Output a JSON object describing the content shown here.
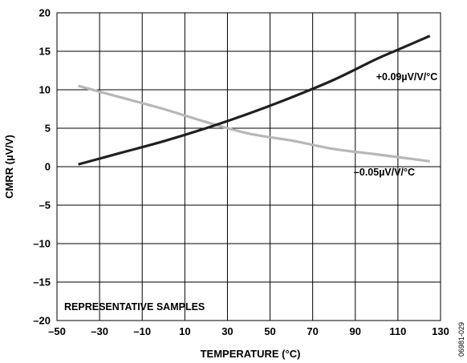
{
  "chart_data": {
    "type": "line",
    "xlabel": "TEMPERATURE (°C)",
    "ylabel": "CMRR (µV/V)",
    "xlim": [
      -50,
      130
    ],
    "ylim": [
      -20,
      20
    ],
    "x_ticks": [
      -50,
      -30,
      -10,
      10,
      30,
      50,
      70,
      90,
      110,
      130
    ],
    "x_tick_labels": [
      "–50",
      "–30",
      "–10",
      "10",
      "30",
      "50",
      "70",
      "90",
      "110",
      "130"
    ],
    "y_ticks": [
      -20,
      -15,
      -10,
      -5,
      0,
      5,
      10,
      15,
      20
    ],
    "y_tick_labels": [
      "–20",
      "–15",
      "–10",
      "–5",
      "0",
      "5",
      "10",
      "15",
      "20"
    ],
    "grid": true,
    "series": [
      {
        "name": "+0.09µV/V/°C",
        "color": "#231f20",
        "x": [
          -40,
          -20,
          0,
          20,
          40,
          60,
          80,
          100,
          110,
          125
        ],
        "y": [
          0.3,
          1.8,
          3.3,
          5.0,
          6.9,
          9.0,
          11.3,
          14.0,
          15.2,
          17.0
        ]
      },
      {
        "name": "–0.05µV/V/°C",
        "color": "#b7b7b7",
        "x": [
          -40,
          -20,
          0,
          20,
          40,
          60,
          80,
          100,
          125
        ],
        "y": [
          10.5,
          9.0,
          7.5,
          5.8,
          4.3,
          3.4,
          2.3,
          1.6,
          0.7
        ]
      }
    ],
    "annotations": [
      "+0.09µV/V/°C",
      "–0.05µV/V/°C",
      "REPRESENTATIVE SAMPLES"
    ],
    "figure_code": "06981-029"
  }
}
